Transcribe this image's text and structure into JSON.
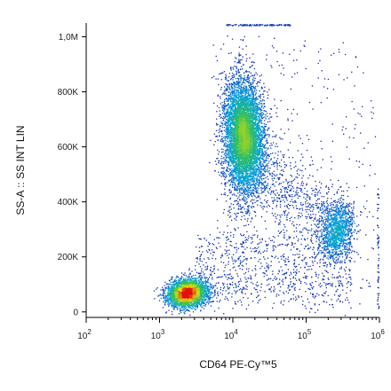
{
  "chart_data": {
    "type": "scatter",
    "title": "",
    "xlabel": "CD64 PE-Cy™5",
    "ylabel": "SS-A :: SS INT LIN",
    "x_scale": "log",
    "x_range": [
      100,
      1000000
    ],
    "x_ticks": [
      {
        "value": 100,
        "base": "10",
        "exp": "2"
      },
      {
        "value": 1000,
        "base": "10",
        "exp": "3"
      },
      {
        "value": 10000,
        "base": "10",
        "exp": "4"
      },
      {
        "value": 100000,
        "base": "10",
        "exp": "5"
      },
      {
        "value": 1000000,
        "base": "10",
        "exp": "6"
      }
    ],
    "y_scale": "linear",
    "y_range": [
      -20000,
      1050000
    ],
    "y_ticks": [
      {
        "value": 0,
        "label": "0"
      },
      {
        "value": 200000,
        "label": "200K"
      },
      {
        "value": 400000,
        "label": "400K"
      },
      {
        "value": 600000,
        "label": "600K"
      },
      {
        "value": 800000,
        "label": "800K"
      },
      {
        "value": 1000000,
        "label": "1,0M"
      }
    ],
    "populations": [
      {
        "x_center": 2400,
        "y_center": 70000,
        "n": 3500
      },
      {
        "x_center": 14000,
        "y_center": 640000,
        "n": 6500
      },
      {
        "x_center": 270000,
        "y_center": 300000,
        "n": 1100
      }
    ],
    "colors": {
      "low": "#1a1aa8",
      "mid_low": "#00a0e0",
      "mid": "#30c060",
      "mid_high": "#e8e000",
      "high": "#e01010"
    }
  }
}
